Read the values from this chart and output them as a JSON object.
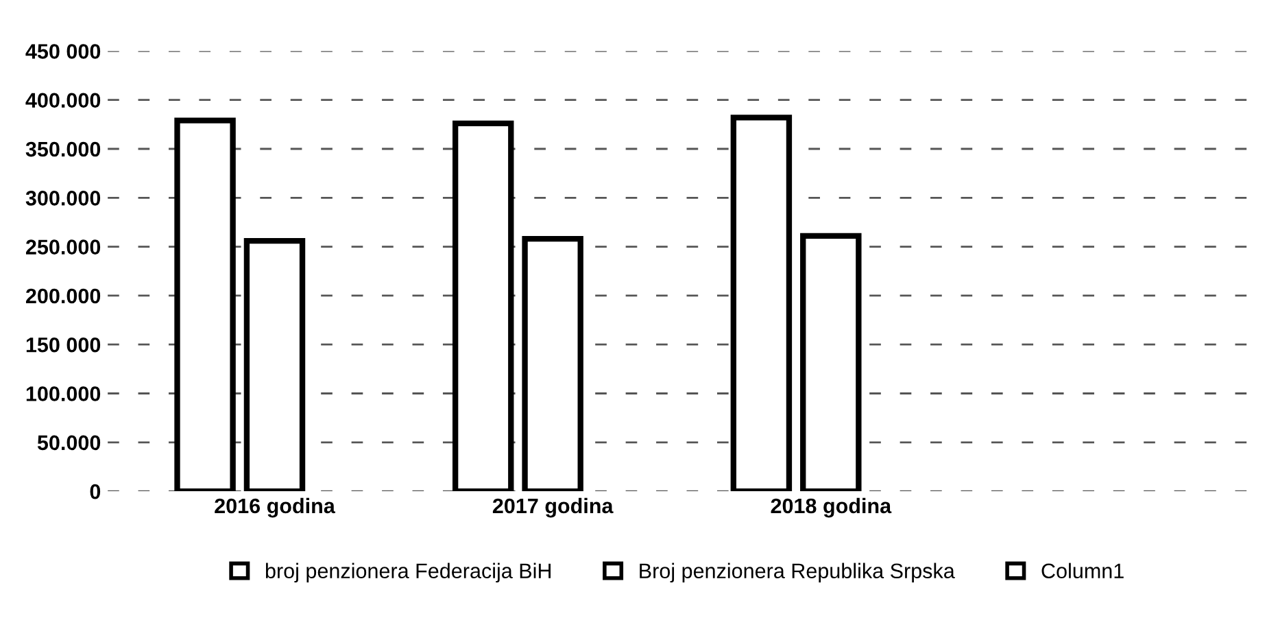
{
  "chart_data": {
    "type": "bar",
    "categories": [
      "2016 godina",
      "2017 godina",
      "2018 godina"
    ],
    "series": [
      {
        "name": "broj penzionera Federacija BiH",
        "color": "#ffffff",
        "values": [
          379000,
          376000,
          382000
        ]
      },
      {
        "name": "Broj penzionera Republika Srpska",
        "color": "#ffffff",
        "values": [
          256000,
          258000,
          261000
        ]
      },
      {
        "name": "Column1",
        "color": "#ffffff",
        "values": [
          null,
          null,
          null
        ]
      }
    ],
    "ylim": [
      0,
      450000
    ],
    "yticks": [
      {
        "value": 0,
        "label": "0"
      },
      {
        "value": 50000,
        "label": "50.000"
      },
      {
        "value": 100000,
        "label": "100.000"
      },
      {
        "value": 150000,
        "label": "150 000"
      },
      {
        "value": 200000,
        "label": "200.000"
      },
      {
        "value": 250000,
        "label": "250.000"
      },
      {
        "value": 300000,
        "label": "300.000"
      },
      {
        "value": 350000,
        "label": "350.000"
      },
      {
        "value": 400000,
        "label": "400.000"
      },
      {
        "value": 450000,
        "label": "450 000"
      }
    ],
    "grid": "y",
    "legend": "bottom"
  }
}
